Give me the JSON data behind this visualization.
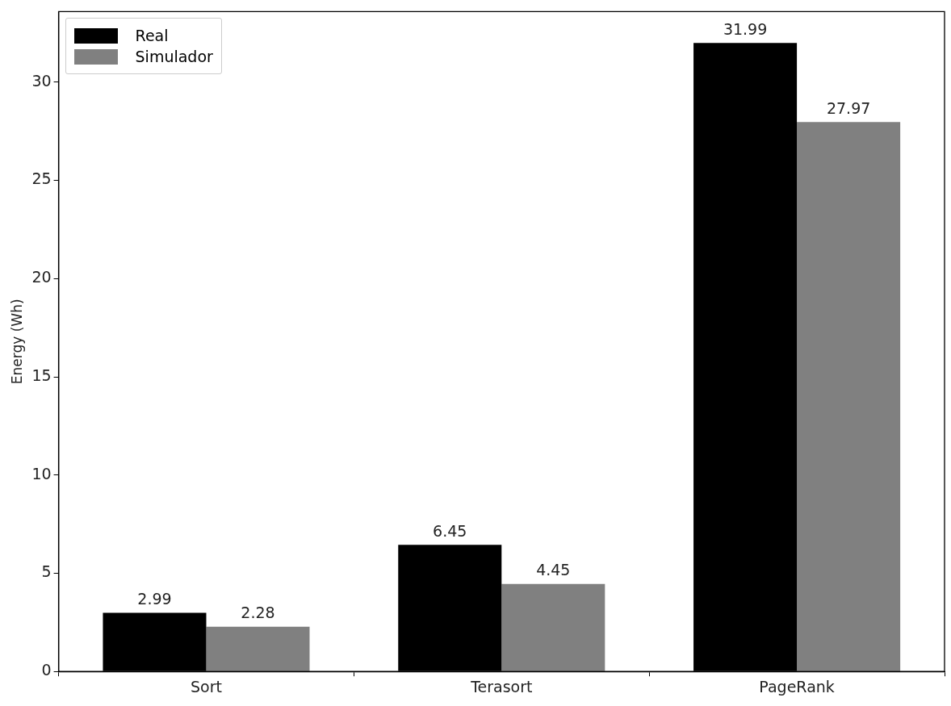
{
  "chart_data": {
    "type": "bar",
    "ylabel": "Energy (Wh)",
    "categories": [
      "Sort",
      "Terasort",
      "PageRank"
    ],
    "series": [
      {
        "name": "Real",
        "color": "#000000",
        "values": [
          2.99,
          6.45,
          31.99
        ]
      },
      {
        "name": "Simulador",
        "color": "#808080",
        "values": [
          2.28,
          4.45,
          27.97
        ]
      }
    ],
    "ylim": [
      0,
      33.59
    ],
    "yticks": [
      0,
      5,
      10,
      15,
      20,
      25,
      30
    ],
    "grid": false,
    "legend": "top left",
    "data_labels": true
  }
}
